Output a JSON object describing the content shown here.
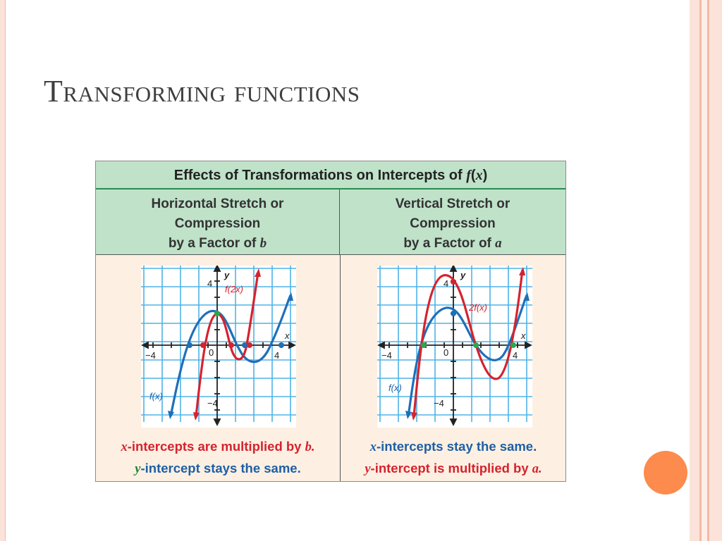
{
  "slide": {
    "title": "Transforming functions"
  },
  "table": {
    "title_prefix": "Effects of Transformations on Intercepts of ",
    "title_fx": "f",
    "title_paren_open": "(",
    "title_x": "x",
    "title_paren_close": ")",
    "left": {
      "header_line1": "Horizontal Stretch or",
      "header_line2": "Compression",
      "header_line3": "by a Factor of ",
      "header_var": "b",
      "caption1_var": "x",
      "caption1_text": "-intercepts are multiplied by ",
      "caption1_end": "b.",
      "caption2_var": "y",
      "caption2_text": "-intercept stays the same."
    },
    "right": {
      "header_line1": "Vertical Stretch or",
      "header_line2": "Compression",
      "header_line3": "by a Factor of ",
      "header_var": "a",
      "caption1_var": "x",
      "caption1_text": "-intercepts stay the same.",
      "caption2_var": "y",
      "caption2_text": "-intercept is multiplied by ",
      "caption2_end": "a."
    }
  },
  "graphs": {
    "axis_x": "x",
    "axis_y": "y",
    "tick_neg4": "−4",
    "tick_zero": "0",
    "tick_4": "4",
    "tick_y4": "4",
    "tick_yneg4": "−4",
    "left_red_label": "f(2x)",
    "left_blue_label": "f(x)",
    "right_red_label": "2f(x)",
    "right_blue_label": "f(x)"
  },
  "colors": {
    "red": "#d5232f",
    "blue": "#1f6fb8",
    "green": "#2aa84a",
    "grid": "#4fb3e8",
    "accent_dot": "#fd8b4d"
  }
}
